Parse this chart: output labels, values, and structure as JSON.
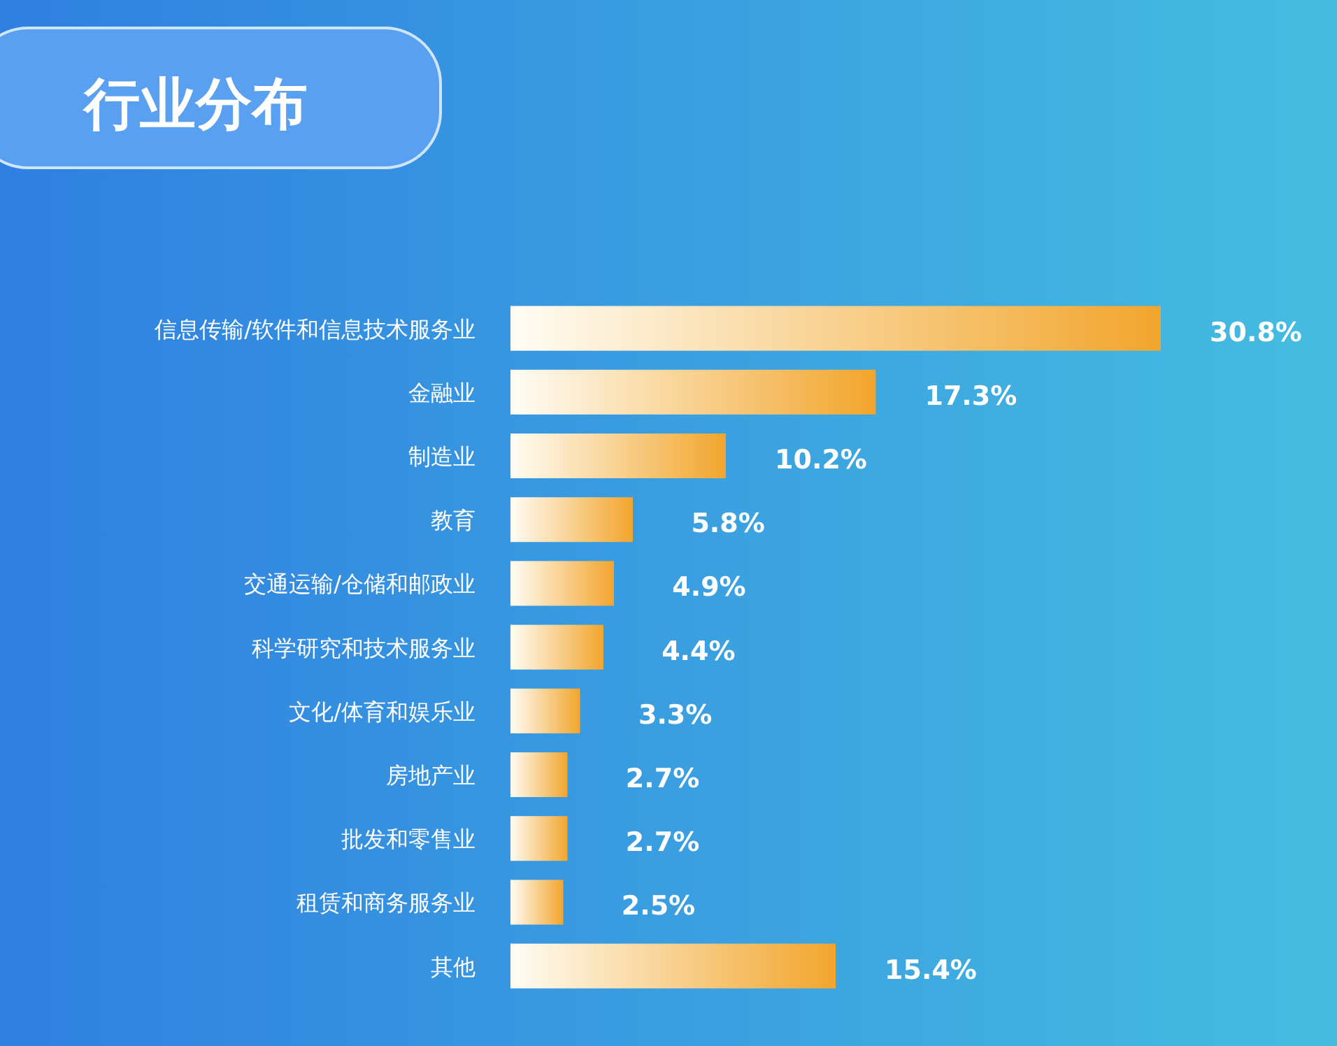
{
  "chart_data": {
    "type": "bar",
    "orientation": "horizontal",
    "title": "行业分布",
    "categories": [
      "信息传输/软件和信息技术服务业",
      "金融业",
      "制造业",
      "教育",
      "交通运输/仓储和邮政业",
      "科学研究和技术服务业",
      "文化/体育和娱乐业",
      "房地产业",
      "批发和零售业",
      "租赁和商务服务业",
      "其他"
    ],
    "values": [
      30.8,
      17.3,
      10.2,
      5.8,
      4.9,
      4.4,
      3.3,
      2.7,
      2.7,
      2.5,
      15.4
    ],
    "value_labels": [
      "30.8%",
      "17.3%",
      "10.2%",
      "5.8%",
      "4.9%",
      "4.4%",
      "3.3%",
      "2.7%",
      "2.7%",
      "2.5%",
      "15.4%"
    ],
    "color": "#f2a52c"
  }
}
